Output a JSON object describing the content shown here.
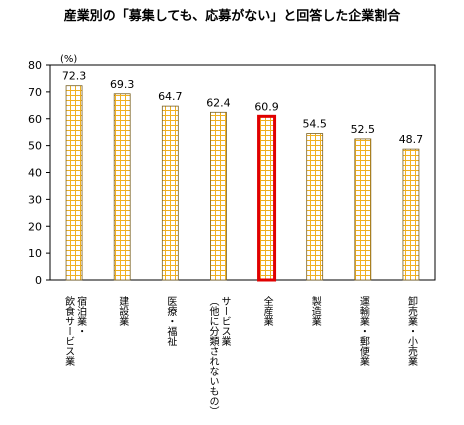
{
  "chart_data": {
    "type": "bar",
    "title": "産業別の「募集しても、応募がない」と回答した企業割合",
    "unit_label": "(%)",
    "ylim": [
      0,
      80
    ],
    "yticks": [
      0,
      10,
      20,
      30,
      40,
      50,
      60,
      70,
      80
    ],
    "grid": false,
    "legend": "none",
    "categories": [
      [
        "飲食サービス業",
        "宿泊業・"
      ],
      [
        "建設業"
      ],
      [
        "医療・福祉"
      ],
      [
        "（他に分類されないもの）",
        "サービス業"
      ],
      [
        "全産業"
      ],
      [
        "製造業"
      ],
      [
        "運輸業・郵便業"
      ],
      [
        "卸売業・小売業"
      ]
    ],
    "values": [
      72.3,
      69.3,
      64.7,
      62.4,
      60.9,
      54.5,
      52.5,
      48.7
    ],
    "value_labels": [
      "72.3",
      "69.3",
      "64.7",
      "62.4",
      "60.9",
      "54.5",
      "52.5",
      "48.7"
    ],
    "highlight_index": 4,
    "colors": {
      "bar_fill": "#ffffff",
      "bar_pattern": "#f0b020",
      "bar_border": "#7a6020",
      "highlight_border": "#e00000",
      "axis": "#000000"
    }
  }
}
